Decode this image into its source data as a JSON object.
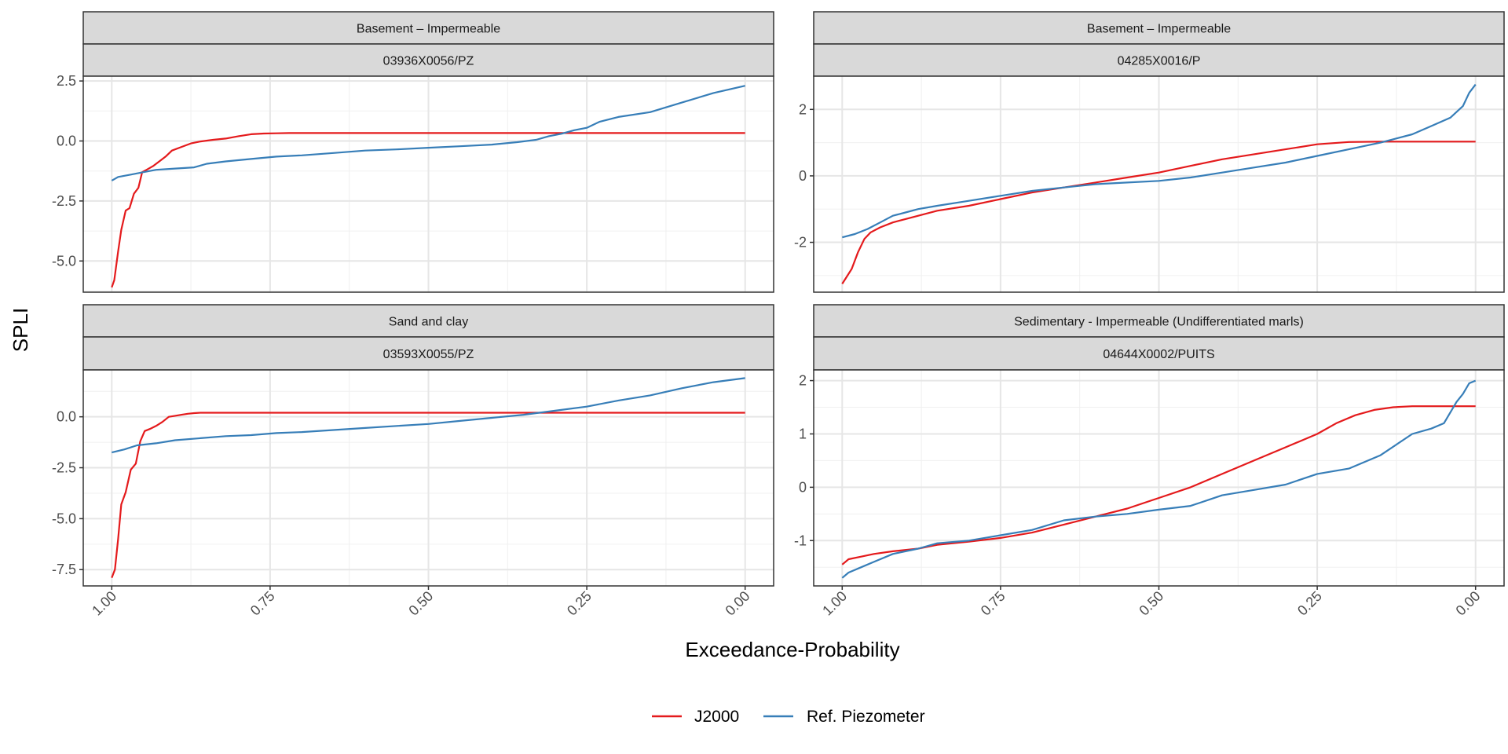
{
  "chart_data": {
    "type": "line",
    "xlabel": "Exceedance-Probability",
    "ylabel": "SPLI",
    "x_reversed": true,
    "xlim": [
      1.0,
      0.0
    ],
    "x_ticks": [
      1.0,
      0.75,
      0.5,
      0.25,
      0.0
    ],
    "x_tick_labels": [
      "1.00",
      "0.75",
      "0.50",
      "0.25",
      "0.00"
    ],
    "grid": true,
    "legend": {
      "position": "bottom",
      "entries": [
        {
          "name": "J2000",
          "color": "#e41a1c"
        },
        {
          "name": "Ref. Piezometer",
          "color": "#377eb8"
        }
      ]
    },
    "panels": [
      {
        "strip_top": "Basement – Impermeable",
        "strip_bottom": "03936X0056/PZ",
        "ylim": [
          -6.3,
          2.7
        ],
        "y_ticks": [
          2.5,
          0.0,
          -2.5,
          -5.0
        ],
        "y_tick_labels": [
          "2.5",
          "0.0",
          "-2.5",
          "-5.0"
        ],
        "series": [
          {
            "name": "J2000",
            "color": "#e41a1c",
            "x": [
              1.0,
              0.996,
              0.99,
              0.985,
              0.978,
              0.972,
              0.965,
              0.958,
              0.952,
              0.945,
              0.935,
              0.925,
              0.915,
              0.905,
              0.89,
              0.875,
              0.86,
              0.84,
              0.82,
              0.8,
              0.78,
              0.76,
              0.74,
              0.72,
              0.7,
              0.65,
              0.5,
              0.3,
              0.1,
              0.0
            ],
            "y": [
              -6.1,
              -5.8,
              -4.6,
              -3.7,
              -2.9,
              -2.8,
              -2.2,
              -1.95,
              -1.3,
              -1.2,
              -1.05,
              -0.85,
              -0.65,
              -0.4,
              -0.25,
              -0.1,
              -0.02,
              0.05,
              0.1,
              0.2,
              0.28,
              0.31,
              0.32,
              0.33,
              0.33,
              0.33,
              0.33,
              0.33,
              0.33,
              0.33
            ]
          },
          {
            "name": "Ref. Piezometer",
            "color": "#377eb8",
            "x": [
              1.0,
              0.99,
              0.97,
              0.95,
              0.93,
              0.9,
              0.87,
              0.85,
              0.82,
              0.78,
              0.74,
              0.7,
              0.65,
              0.6,
              0.55,
              0.5,
              0.45,
              0.4,
              0.36,
              0.33,
              0.31,
              0.29,
              0.27,
              0.25,
              0.23,
              0.2,
              0.15,
              0.1,
              0.05,
              0.0
            ],
            "y": [
              -1.65,
              -1.5,
              -1.4,
              -1.3,
              -1.2,
              -1.15,
              -1.1,
              -0.95,
              -0.85,
              -0.75,
              -0.65,
              -0.6,
              -0.5,
              -0.4,
              -0.35,
              -0.28,
              -0.22,
              -0.15,
              -0.05,
              0.05,
              0.2,
              0.3,
              0.45,
              0.55,
              0.8,
              1.0,
              1.2,
              1.6,
              2.0,
              2.3
            ]
          }
        ]
      },
      {
        "strip_top": "Basement – Impermeable",
        "strip_bottom": "04285X0016/P",
        "ylim": [
          -3.5,
          3.0
        ],
        "y_ticks": [
          2,
          0,
          -2
        ],
        "y_tick_labels": [
          "2",
          "0",
          "-2"
        ],
        "series": [
          {
            "name": "J2000",
            "color": "#e41a1c",
            "x": [
              1.0,
              0.995,
              0.985,
              0.975,
              0.965,
              0.955,
              0.94,
              0.92,
              0.9,
              0.88,
              0.85,
              0.8,
              0.75,
              0.7,
              0.65,
              0.6,
              0.55,
              0.5,
              0.45,
              0.4,
              0.35,
              0.3,
              0.25,
              0.2,
              0.15,
              0.1,
              0.0
            ],
            "y": [
              -3.25,
              -3.1,
              -2.8,
              -2.3,
              -1.9,
              -1.7,
              -1.55,
              -1.4,
              -1.3,
              -1.2,
              -1.05,
              -0.9,
              -0.7,
              -0.5,
              -0.35,
              -0.2,
              -0.05,
              0.1,
              0.3,
              0.5,
              0.65,
              0.8,
              0.95,
              1.02,
              1.03,
              1.03,
              1.03
            ]
          },
          {
            "name": "Ref. Piezometer",
            "color": "#377eb8",
            "x": [
              1.0,
              0.98,
              0.96,
              0.94,
              0.92,
              0.9,
              0.88,
              0.85,
              0.8,
              0.75,
              0.7,
              0.65,
              0.6,
              0.55,
              0.5,
              0.45,
              0.4,
              0.35,
              0.3,
              0.25,
              0.2,
              0.15,
              0.1,
              0.07,
              0.04,
              0.02,
              0.01,
              0.0
            ],
            "y": [
              -1.85,
              -1.75,
              -1.6,
              -1.4,
              -1.2,
              -1.1,
              -1.0,
              -0.9,
              -0.75,
              -0.6,
              -0.45,
              -0.35,
              -0.25,
              -0.2,
              -0.15,
              -0.05,
              0.1,
              0.25,
              0.4,
              0.6,
              0.8,
              1.0,
              1.25,
              1.5,
              1.75,
              2.1,
              2.5,
              2.75
            ]
          }
        ]
      },
      {
        "strip_top": "Sand and clay",
        "strip_bottom": "03593X0055/PZ",
        "ylim": [
          -8.3,
          2.3
        ],
        "y_ticks": [
          0.0,
          -2.5,
          -5.0,
          -7.5
        ],
        "y_tick_labels": [
          "0.0",
          "-2.5",
          "-5.0",
          "-7.5"
        ],
        "series": [
          {
            "name": "J2000",
            "color": "#e41a1c",
            "x": [
              1.0,
              0.995,
              0.99,
              0.985,
              0.978,
              0.97,
              0.962,
              0.955,
              0.948,
              0.94,
              0.93,
              0.92,
              0.91,
              0.9,
              0.89,
              0.88,
              0.87,
              0.86,
              0.84,
              0.82,
              0.8,
              0.7,
              0.5,
              0.3,
              0.1,
              0.0
            ],
            "y": [
              -7.9,
              -7.5,
              -6.0,
              -4.3,
              -3.7,
              -2.6,
              -2.3,
              -1.2,
              -0.7,
              -0.6,
              -0.45,
              -0.25,
              0.0,
              0.05,
              0.1,
              0.15,
              0.18,
              0.2,
              0.2,
              0.2,
              0.2,
              0.2,
              0.2,
              0.2,
              0.2,
              0.2
            ]
          },
          {
            "name": "Ref. Piezometer",
            "color": "#377eb8",
            "x": [
              1.0,
              0.98,
              0.96,
              0.93,
              0.9,
              0.86,
              0.82,
              0.78,
              0.74,
              0.7,
              0.65,
              0.6,
              0.55,
              0.5,
              0.45,
              0.4,
              0.35,
              0.3,
              0.25,
              0.2,
              0.15,
              0.1,
              0.05,
              0.0
            ],
            "y": [
              -1.75,
              -1.6,
              -1.4,
              -1.3,
              -1.15,
              -1.05,
              -0.95,
              -0.9,
              -0.8,
              -0.75,
              -0.65,
              -0.55,
              -0.45,
              -0.35,
              -0.2,
              -0.05,
              0.1,
              0.3,
              0.5,
              0.8,
              1.05,
              1.4,
              1.7,
              1.9
            ]
          }
        ]
      },
      {
        "strip_top": "Sedimentary - Impermeable (Undifferentiated marls)",
        "strip_bottom": "04644X0002/PUITS",
        "ylim": [
          -1.85,
          2.2
        ],
        "y_ticks": [
          2,
          1,
          0,
          -1
        ],
        "y_tick_labels": [
          "2",
          "1",
          "0",
          "-1"
        ],
        "series": [
          {
            "name": "J2000",
            "color": "#e41a1c",
            "x": [
              1.0,
              0.99,
              0.97,
              0.95,
              0.92,
              0.88,
              0.85,
              0.8,
              0.75,
              0.7,
              0.65,
              0.6,
              0.55,
              0.5,
              0.45,
              0.4,
              0.35,
              0.3,
              0.25,
              0.22,
              0.19,
              0.16,
              0.13,
              0.1,
              0.05,
              0.0
            ],
            "y": [
              -1.45,
              -1.35,
              -1.3,
              -1.25,
              -1.2,
              -1.15,
              -1.08,
              -1.02,
              -0.95,
              -0.85,
              -0.7,
              -0.55,
              -0.4,
              -0.2,
              0.0,
              0.25,
              0.5,
              0.75,
              1.0,
              1.2,
              1.35,
              1.45,
              1.5,
              1.52,
              1.52,
              1.52
            ]
          },
          {
            "name": "Ref. Piezometer",
            "color": "#377eb8",
            "x": [
              1.0,
              0.99,
              0.97,
              0.95,
              0.92,
              0.88,
              0.85,
              0.8,
              0.75,
              0.7,
              0.65,
              0.6,
              0.55,
              0.5,
              0.45,
              0.4,
              0.35,
              0.3,
              0.25,
              0.2,
              0.15,
              0.1,
              0.07,
              0.05,
              0.03,
              0.02,
              0.01,
              0.0
            ],
            "y": [
              -1.7,
              -1.6,
              -1.5,
              -1.4,
              -1.25,
              -1.15,
              -1.05,
              -1.0,
              -0.9,
              -0.8,
              -0.62,
              -0.55,
              -0.5,
              -0.42,
              -0.35,
              -0.15,
              -0.05,
              0.05,
              0.25,
              0.35,
              0.6,
              1.0,
              1.1,
              1.2,
              1.6,
              1.75,
              1.95,
              2.0
            ]
          }
        ]
      }
    ]
  }
}
